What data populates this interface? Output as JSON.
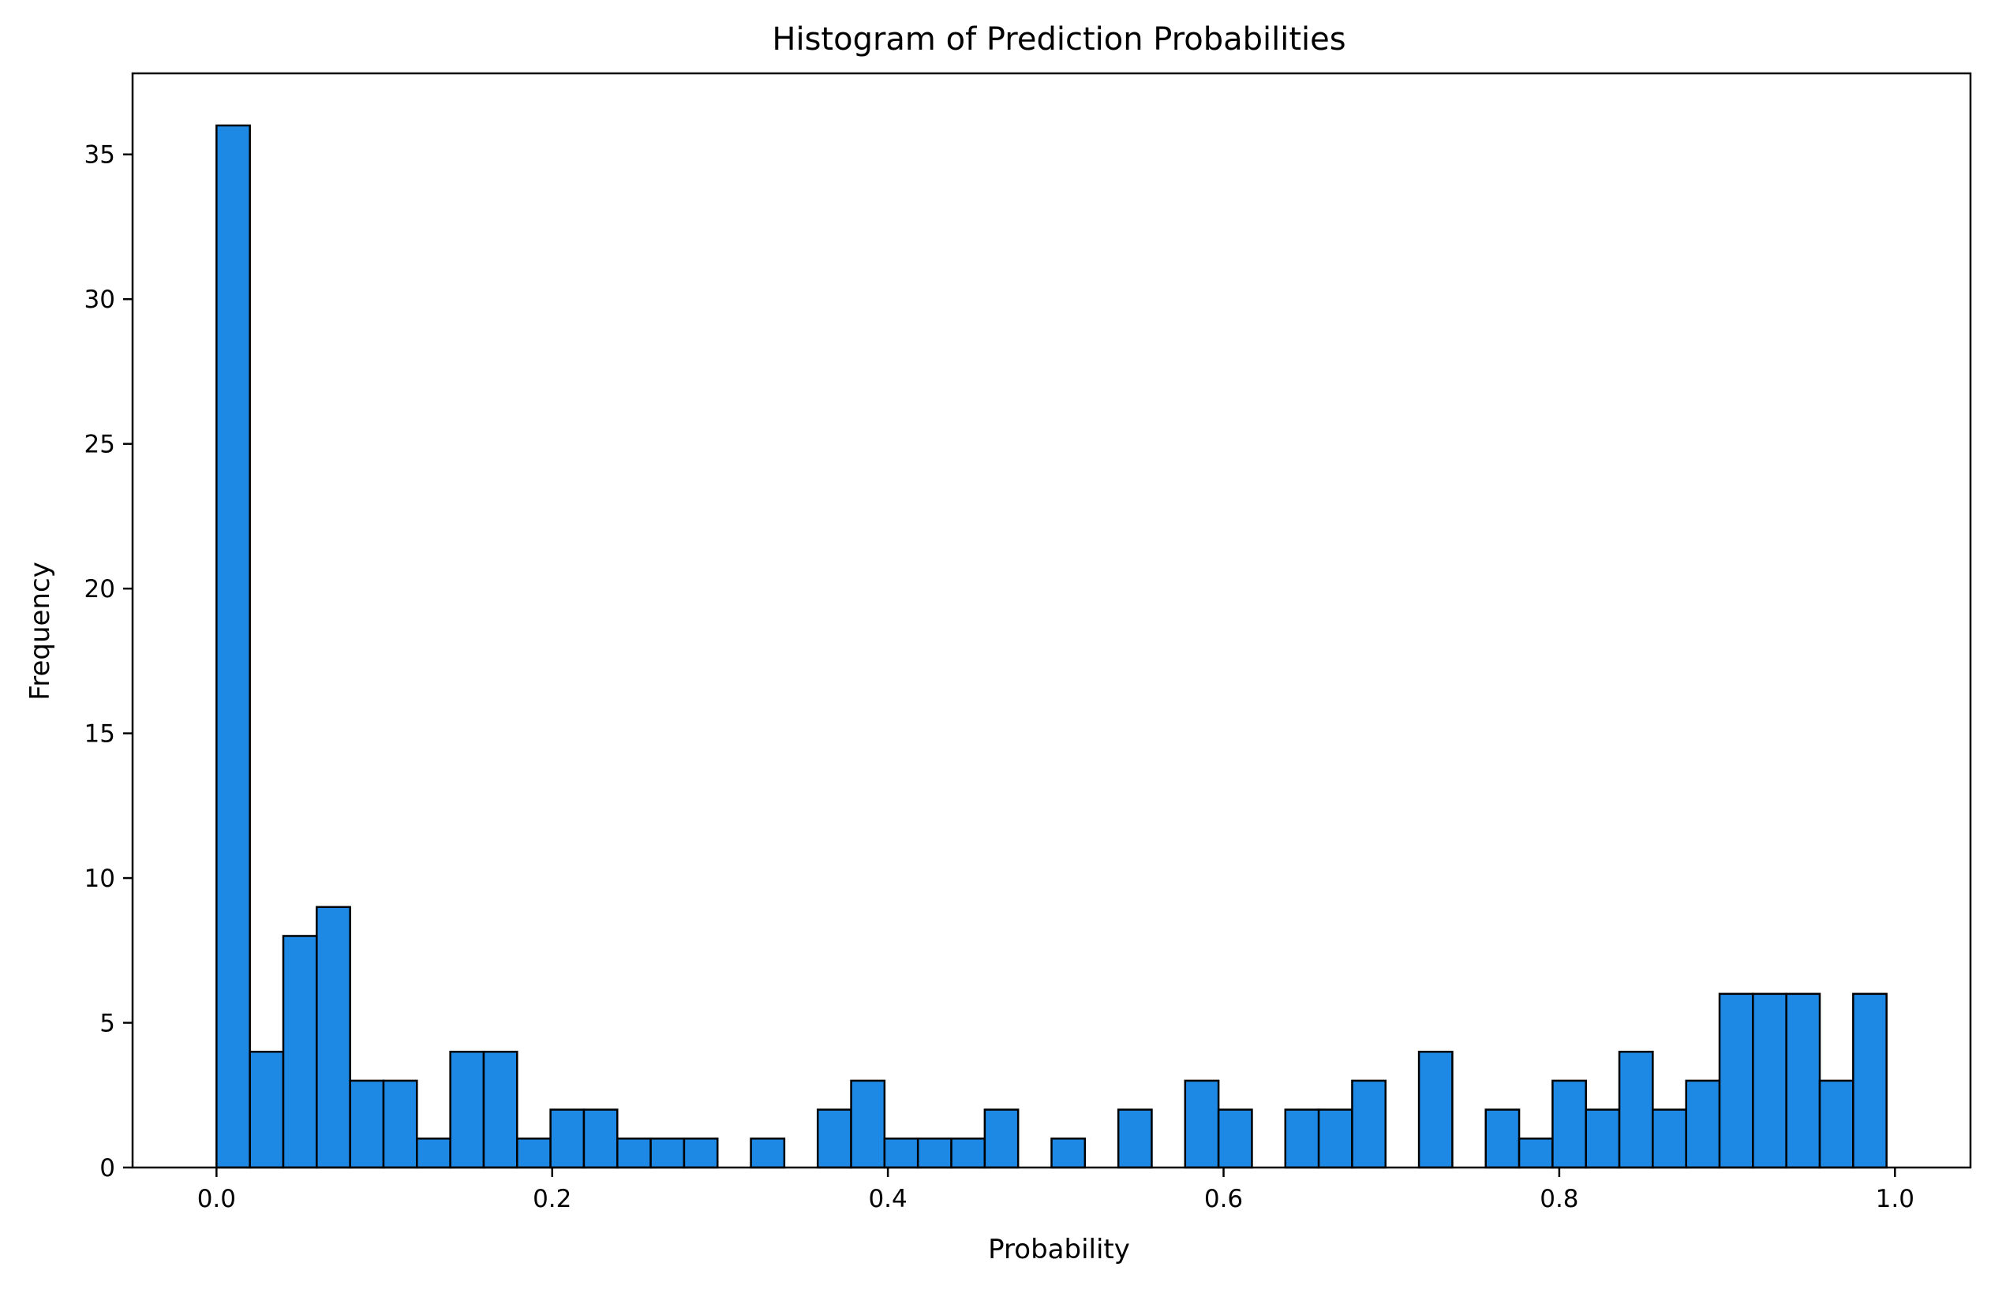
{
  "chart_data": {
    "type": "bar",
    "title": "Histogram of Prediction Probabilities",
    "xlabel": "Probability",
    "ylabel": "Frequency",
    "bin_start": 0.0,
    "bin_width": 0.0199,
    "values": [
      36,
      4,
      8,
      9,
      3,
      3,
      1,
      4,
      4,
      1,
      2,
      2,
      1,
      1,
      1,
      0,
      1,
      0,
      2,
      3,
      1,
      1,
      1,
      2,
      0,
      1,
      0,
      2,
      0,
      3,
      2,
      0,
      2,
      2,
      3,
      0,
      4,
      0,
      2,
      1,
      3,
      2,
      4,
      2,
      3,
      6,
      6,
      6,
      3,
      6
    ],
    "xlim": [
      -0.05,
      1.045
    ],
    "ylim": [
      0,
      37.8
    ],
    "xticks": [
      0.0,
      0.2,
      0.4,
      0.6,
      0.8,
      1.0
    ],
    "xtick_labels": [
      "0.0",
      "0.2",
      "0.4",
      "0.6",
      "0.8",
      "1.0"
    ],
    "yticks": [
      0,
      5,
      10,
      15,
      20,
      25,
      30,
      35
    ],
    "ytick_labels": [
      "0",
      "5",
      "10",
      "15",
      "20",
      "25",
      "30",
      "35"
    ],
    "grid": false,
    "bar_color": "#1e88e5",
    "edge_color": "#000000"
  }
}
